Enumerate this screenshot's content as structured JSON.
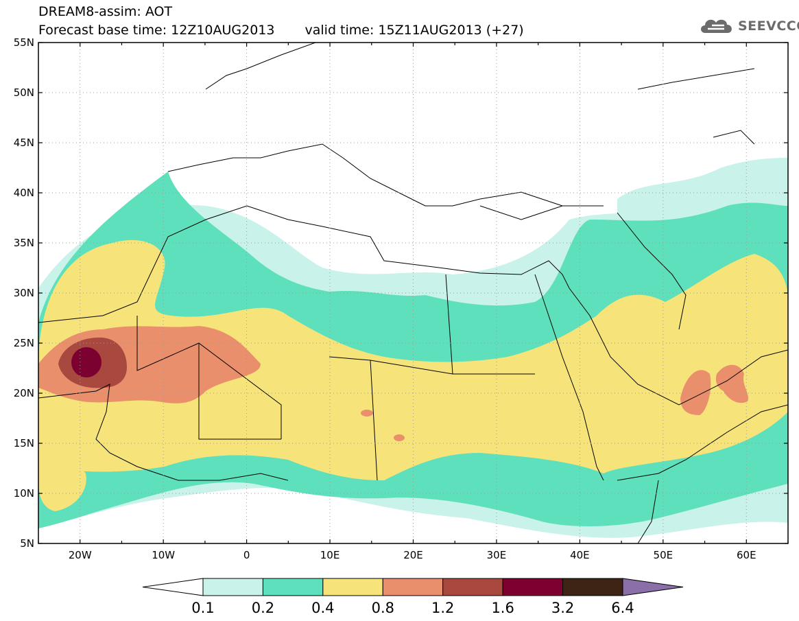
{
  "header": {
    "title_line1": "DREAM8-assim: AOT",
    "base_time_text": "Forecast base time: 12Z10AUG2013",
    "valid_time_text": "valid time: 15Z11AUG2013 (+27)"
  },
  "logo": {
    "text": "SEEVCCC",
    "icon": "cloud-icon",
    "color": "#6b6b6b"
  },
  "map": {
    "lon_range": [
      -25,
      65
    ],
    "lat_range": [
      5,
      55
    ],
    "lat_labels": [
      "55N",
      "50N",
      "45N",
      "40N",
      "35N",
      "30N",
      "25N",
      "20N",
      "15N",
      "10N",
      "5N"
    ],
    "lon_labels": [
      "20W",
      "10W",
      "0",
      "10E",
      "20E",
      "30E",
      "40E",
      "50E",
      "60E"
    ],
    "gridlines": "dotted"
  },
  "colorbar": {
    "labels": [
      "0.1",
      "0.2",
      "0.4",
      "0.8",
      "1.2",
      "1.6",
      "3.2",
      "6.4"
    ],
    "colors": [
      "#ffffff",
      "#c8f2ea",
      "#5ee0bc",
      "#f6e47a",
      "#ea8f6c",
      "#a9483f",
      "#7c0030",
      "#3d2414",
      "#8a6fa8"
    ]
  }
}
